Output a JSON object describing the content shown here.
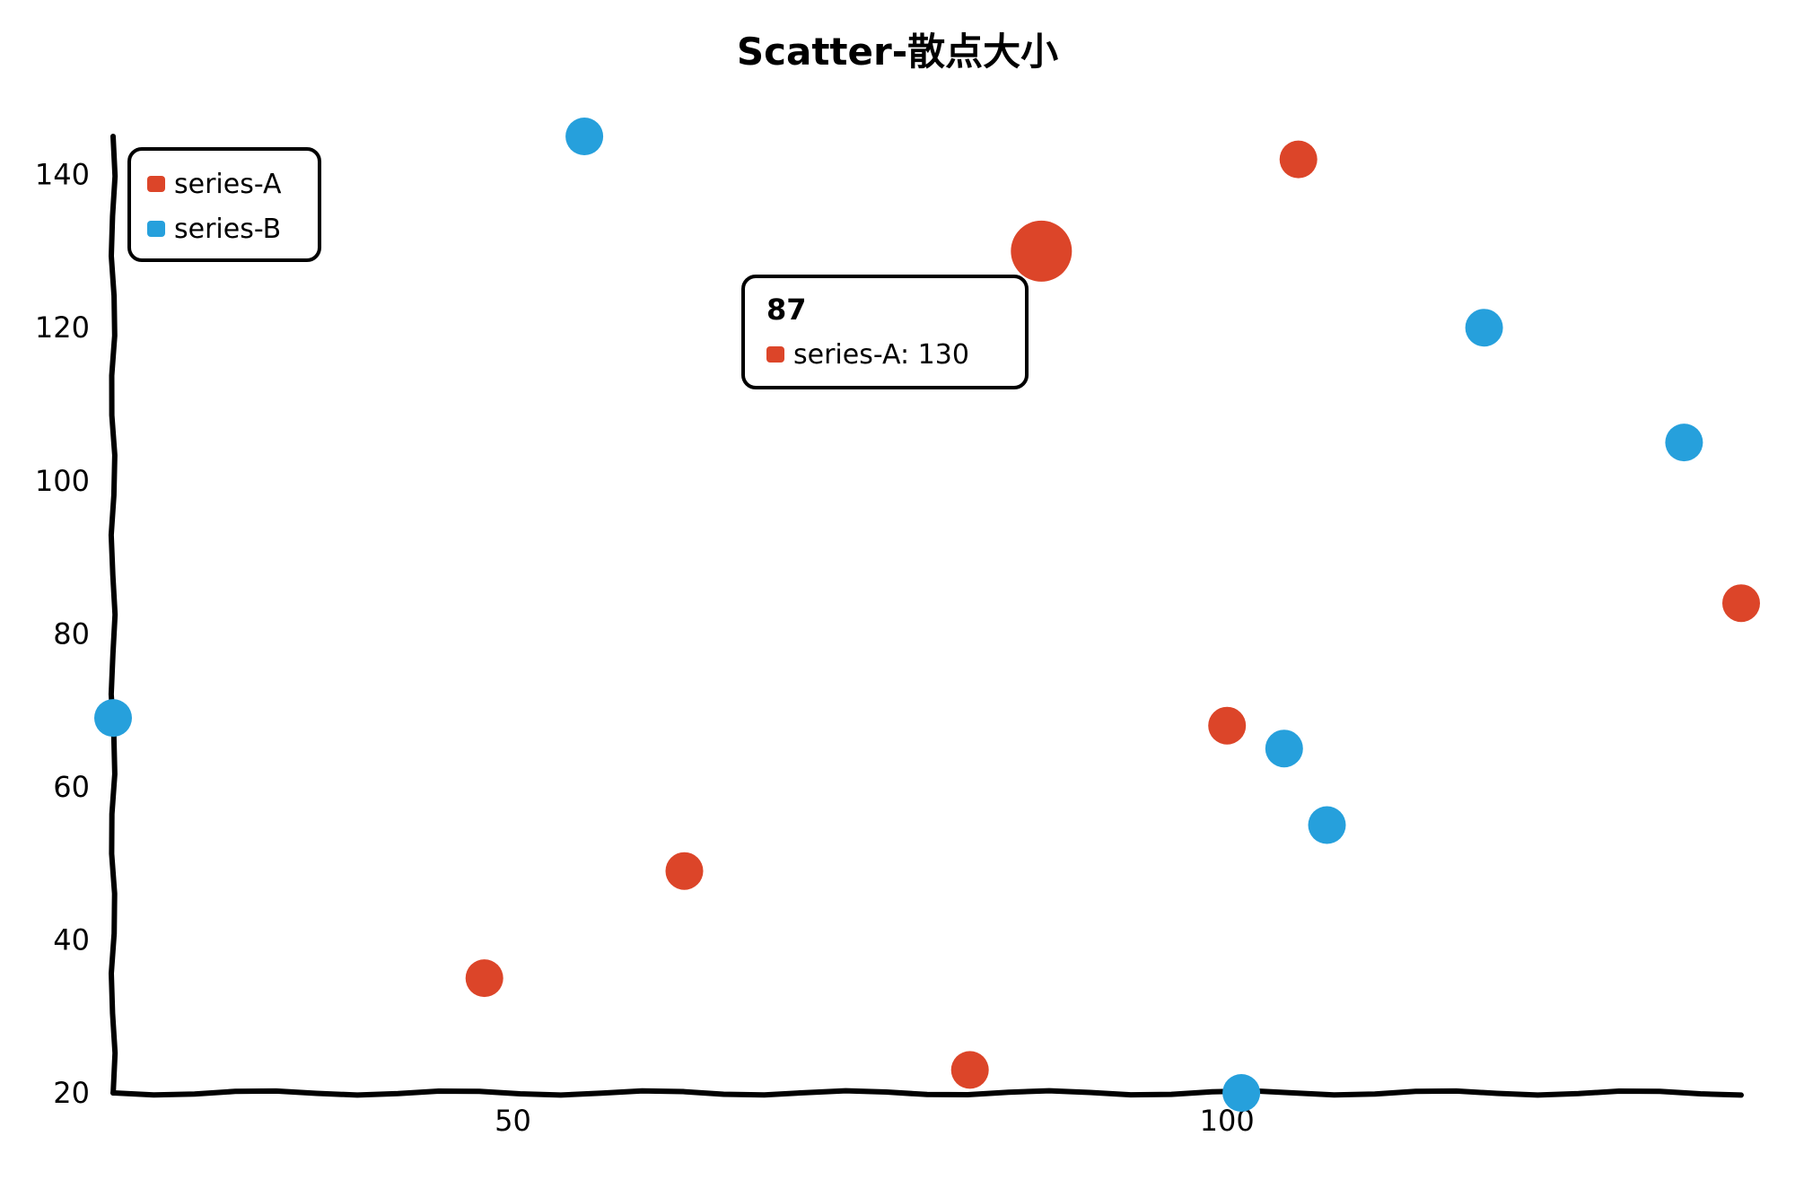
{
  "chart_data": {
    "type": "scatter",
    "title": "Scatter-散点大小",
    "xlabel": "",
    "ylabel": "",
    "xlim": [
      22,
      136
    ],
    "ylim": [
      20,
      145
    ],
    "x_ticks": [
      50,
      100
    ],
    "y_ticks": [
      20,
      40,
      60,
      80,
      100,
      120,
      140
    ],
    "grid": false,
    "legend_position": "top-left",
    "series": [
      {
        "name": "series-A",
        "color": "#dc4529",
        "points": [
          {
            "x": 48,
            "y": 35
          },
          {
            "x": 62,
            "y": 49
          },
          {
            "x": 82,
            "y": 23
          },
          {
            "x": 87,
            "y": 130,
            "size": "large"
          },
          {
            "x": 100,
            "y": 68
          },
          {
            "x": 105,
            "y": 142
          },
          {
            "x": 136,
            "y": 84
          }
        ]
      },
      {
        "name": "series-B",
        "color": "#26a0dc",
        "points": [
          {
            "x": 22,
            "y": 69
          },
          {
            "x": 55,
            "y": 145
          },
          {
            "x": 101,
            "y": 20
          },
          {
            "x": 104,
            "y": 65
          },
          {
            "x": 107,
            "y": 55
          },
          {
            "x": 118,
            "y": 120
          },
          {
            "x": 132,
            "y": 105
          }
        ]
      }
    ],
    "tooltip": {
      "title": "87",
      "series_name": "series-A",
      "value": "130",
      "text": "series-A: 130",
      "color": "#dc4529"
    }
  }
}
